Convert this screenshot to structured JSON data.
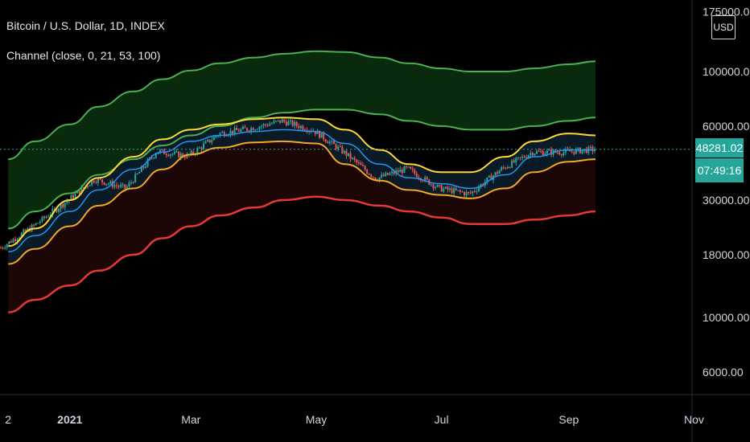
{
  "header": {
    "symbol_line": "Bitcoin / U.S. Dollar, 1D, INDEX",
    "indicator_line": "Channel (close, 0, 21, 53, 100)"
  },
  "price_scale": {
    "currency": "USD",
    "last_price": "48281.02",
    "countdown": "07:49:16"
  },
  "colors": {
    "background": "#000000",
    "up_candle": "#26a69a",
    "down_candle": "#ef5350",
    "upper_outer_band": "#4caf50",
    "upper_band_fill": "#0a2a0e",
    "mid_band_top": "#fdd835",
    "mid_band_bottom": "#f5a623",
    "mid_band_fill": "#0a1a26",
    "moving_average": "#2196f3",
    "lower_band": "#e53935",
    "lower_band_fill": "#1c0606",
    "last_price_line": "#26a69a"
  },
  "chart_data": {
    "type": "line",
    "scale": "log",
    "y_ticks": [
      "175000.00",
      "100000.00",
      "60000.00",
      "30000.00",
      "18000.00",
      "10000.00",
      "6000.00"
    ],
    "y_tick_values": [
      175000,
      100000,
      60000,
      30000,
      18000,
      10000,
      6000
    ],
    "ylim": [
      5000,
      175000
    ],
    "x_ticks": [
      "2",
      "2021",
      "Mar",
      "May",
      "Jul",
      "Sep",
      "Nov"
    ],
    "x": [
      "2020-12-02",
      "2020-12-15",
      "2021-01-01",
      "2021-01-15",
      "2021-02-01",
      "2021-02-15",
      "2021-03-01",
      "2021-03-15",
      "2021-04-01",
      "2021-04-15",
      "2021-05-01",
      "2021-05-15",
      "2021-06-01",
      "2021-06-15",
      "2021-07-01",
      "2021-07-15",
      "2021-08-01",
      "2021-08-15",
      "2021-09-01",
      "2021-09-14"
    ],
    "series": [
      {
        "key": "upper_outer_top",
        "values": [
          44000,
          52000,
          61000,
          72000,
          83000,
          93000,
          101000,
          108000,
          114000,
          118000,
          121000,
          120000,
          114000,
          108000,
          103000,
          100000,
          100000,
          103000,
          107000,
          110000
        ]
      },
      {
        "key": "upper_outer_bottom",
        "values": [
          23000,
          27000,
          32000,
          38000,
          44000,
          50000,
          55000,
          60000,
          65000,
          68000,
          70000,
          70000,
          67000,
          63000,
          60000,
          58000,
          58000,
          60000,
          63000,
          65000
        ]
      },
      {
        "key": "channel_top",
        "values": [
          19500,
          23000,
          30000,
          37000,
          45000,
          53000,
          58000,
          61000,
          64000,
          65000,
          64000,
          58000,
          48000,
          42000,
          39000,
          39000,
          45000,
          52000,
          56000,
          55000
        ]
      },
      {
        "key": "moving_average",
        "values": [
          18500,
          21500,
          27000,
          33000,
          40000,
          47000,
          52000,
          55000,
          57000,
          58000,
          57000,
          51000,
          42000,
          37000,
          35000,
          33500,
          38000,
          45000,
          48000,
          48000
        ]
      },
      {
        "key": "channel_bottom",
        "values": [
          16500,
          19000,
          23500,
          28500,
          33500,
          40000,
          46000,
          49000,
          51500,
          52000,
          51000,
          42000,
          36000,
          33000,
          31500,
          30500,
          33500,
          39000,
          43000,
          44000
        ]
      },
      {
        "key": "lower_band",
        "values": [
          10500,
          11800,
          13500,
          15500,
          18000,
          21000,
          23500,
          26000,
          28000,
          30000,
          31000,
          30000,
          28500,
          27000,
          25500,
          24000,
          24000,
          25000,
          26000,
          27000
        ]
      },
      {
        "key": "close",
        "values": [
          19200,
          23300,
          29000,
          36500,
          33500,
          47500,
          45200,
          56000,
          58800,
          63000,
          57700,
          46700,
          36700,
          40300,
          33600,
          31800,
          40000,
          47000,
          47100,
          48281
        ]
      }
    ]
  }
}
